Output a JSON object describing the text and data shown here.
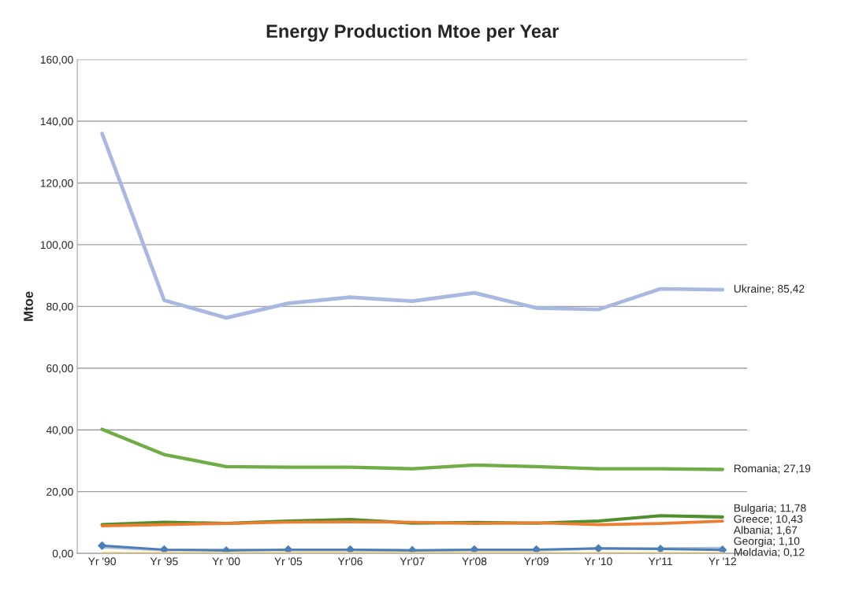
{
  "chart_data": {
    "type": "line",
    "title": "Energy Production Mtoe per Year",
    "ylabel": "Mtoe",
    "categories": [
      "Yr '90",
      "Yr '95",
      "Yr '00",
      "Yr '05",
      "Yr'06",
      "Yr'07",
      "Yr'08",
      "Yr'09",
      "Yr '10",
      "Yr'11",
      "Yr '12"
    ],
    "series": [
      {
        "name": "Ukraine",
        "color": "#a9b8e0",
        "values": [
          136.0,
          82.0,
          76.3,
          81.0,
          83.0,
          81.7,
          84.4,
          79.5,
          79.0,
          85.7,
          85.42
        ],
        "value_labels": [
          null,
          null,
          null,
          null,
          null,
          null,
          null,
          null,
          null,
          null,
          "; 85,42"
        ]
      },
      {
        "name": "Romania",
        "color": "#70ad47",
        "values": [
          40.2,
          32.0,
          28.1,
          27.9,
          27.9,
          27.4,
          28.6,
          28.1,
          27.4,
          27.4,
          27.19
        ],
        "value_labels": [
          null,
          null,
          null,
          null,
          null,
          null,
          null,
          null,
          null,
          null,
          "; 27,19"
        ]
      },
      {
        "name": "Bulgaria",
        "color": "#4f8f2f",
        "values": [
          9.3,
          10.1,
          9.7,
          10.5,
          11.0,
          9.8,
          10.0,
          9.8,
          10.5,
          12.2,
          11.78
        ],
        "value_labels": [
          null,
          null,
          null,
          null,
          null,
          null,
          null,
          null,
          null,
          null,
          "; 11,78"
        ]
      },
      {
        "name": "Greece",
        "color": "#ed7d31",
        "values": [
          8.9,
          9.3,
          9.7,
          10.1,
          10.2,
          10.1,
          9.7,
          9.9,
          9.3,
          9.7,
          10.43
        ],
        "value_labels": [
          null,
          null,
          null,
          null,
          null,
          null,
          null,
          null,
          null,
          null,
          "; 10,43"
        ]
      },
      {
        "name": "Albania",
        "color": "#b4bccb",
        "values": [
          2.0,
          1.0,
          1.2,
          1.0,
          1.0,
          0.9,
          1.0,
          1.0,
          1.5,
          1.6,
          1.67
        ],
        "value_labels": [
          null,
          null,
          null,
          null,
          null,
          null,
          null,
          null,
          null,
          null,
          "; 1,67"
        ]
      },
      {
        "name": "Georgia",
        "color": "#4a7ebb",
        "marker": "diamond",
        "values": [
          2.5,
          1.2,
          0.9,
          1.2,
          1.2,
          1.0,
          1.2,
          1.2,
          1.6,
          1.4,
          1.1
        ],
        "value_labels": [
          null,
          null,
          null,
          null,
          null,
          null,
          null,
          null,
          null,
          null,
          "; 1,10"
        ]
      },
      {
        "name": "Moldavia",
        "color": "#ffd966",
        "values": [
          0.1,
          0.1,
          0.1,
          0.1,
          0.1,
          0.1,
          0.1,
          0.1,
          0.1,
          0.1,
          0.12
        ],
        "value_labels": [
          null,
          null,
          null,
          null,
          null,
          null,
          null,
          null,
          null,
          null,
          "; 0,12"
        ]
      }
    ],
    "ylim": [
      0,
      160
    ],
    "yticks": [
      {
        "value": 0,
        "label": "0,00"
      },
      {
        "value": 20,
        "label": "20,00"
      },
      {
        "value": 40,
        "label": "40,00"
      },
      {
        "value": 60,
        "label": "60,00"
      },
      {
        "value": 80,
        "label": "80,00"
      },
      {
        "value": 100,
        "label": "100,00"
      },
      {
        "value": 120,
        "label": "120,00"
      },
      {
        "value": 140,
        "label": "140,00"
      },
      {
        "value": 160,
        "label": "160,00"
      }
    ],
    "grid": "y",
    "legend": false
  }
}
